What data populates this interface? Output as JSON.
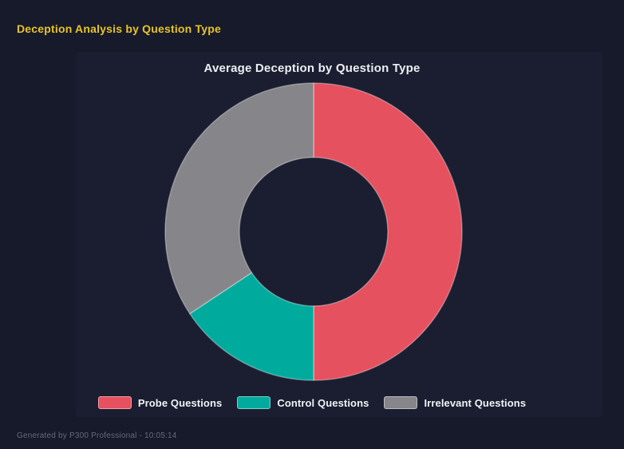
{
  "page": {
    "title": "Deception Analysis by Question Type",
    "footer": "Generated by P300 Professional - 10:05:14"
  },
  "chart_data": {
    "type": "pie",
    "variant": "donut",
    "title": "Average Deception by Question Type",
    "categories": [
      "Probe Questions",
      "Control Questions",
      "Irrelevant Questions"
    ],
    "values": [
      50,
      15.7,
      34.3
    ],
    "values_unit": "percent-of-circle (estimated from arc angles)",
    "colors": [
      "#e6515f",
      "#00ab9e",
      "#85858a"
    ],
    "segment_border_color": "rgba(255,255,255,0.35)",
    "start_angle_deg": 0,
    "direction": "clockwise",
    "inner_radius_ratio": 0.5,
    "legend_position": "bottom",
    "title_color": "#eceef2",
    "background_color": "#161a2b"
  },
  "theme": {
    "page_background": "#161a2b",
    "accent_yellow": "#e9c427",
    "footer_text_color": "#646b7a"
  }
}
